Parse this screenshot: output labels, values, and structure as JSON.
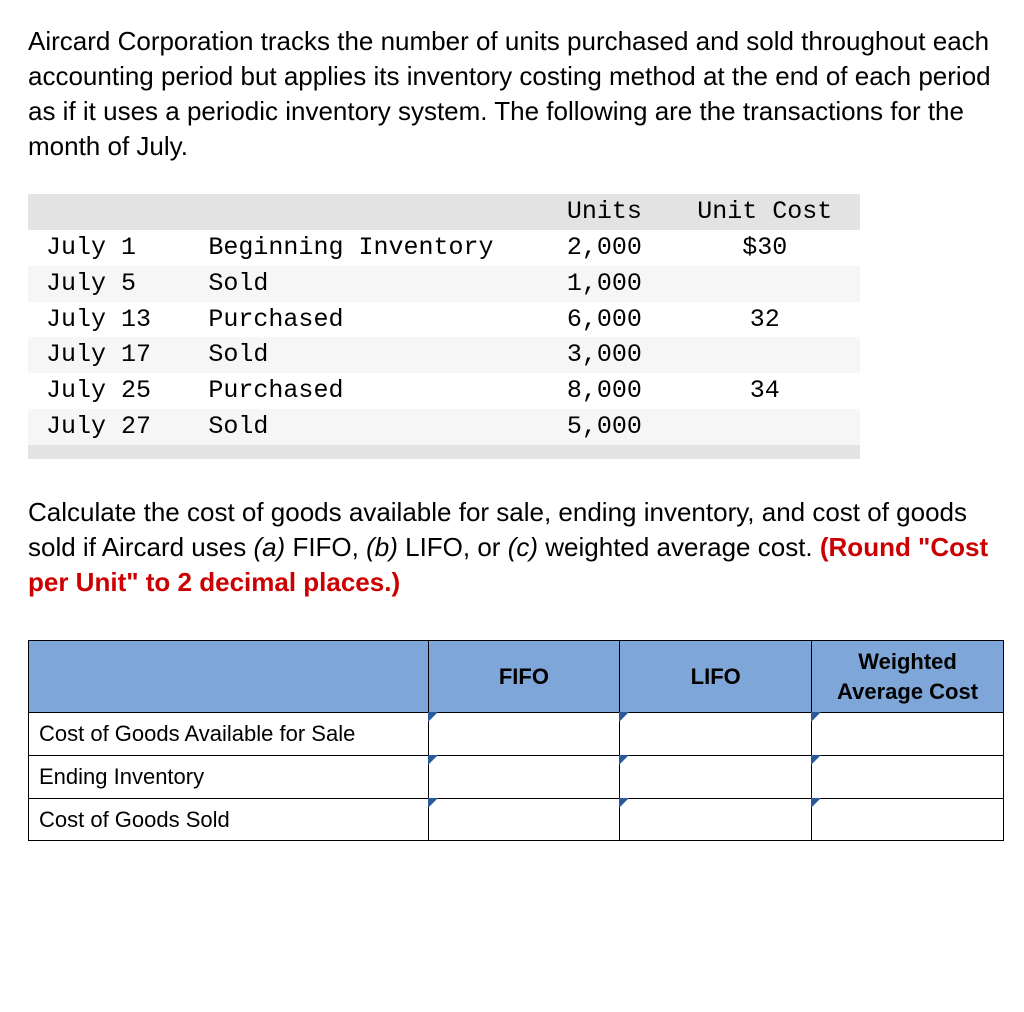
{
  "intro": "Aircard Corporation tracks the number of units purchased and sold throughout each accounting period but applies its inventory costing method at the end of each period as if it uses a periodic inventory system. The following are the transactions for the month of July.",
  "transactions": {
    "headers": {
      "units": "Units",
      "unit_cost": "Unit Cost"
    },
    "rows": [
      {
        "date": "July 1",
        "desc": "Beginning Inventory",
        "units": "2,000",
        "unit_cost": "$30"
      },
      {
        "date": "July 5",
        "desc": "Sold",
        "units": "1,000",
        "unit_cost": ""
      },
      {
        "date": "July 13",
        "desc": "Purchased",
        "units": "6,000",
        "unit_cost": "32"
      },
      {
        "date": "July 17",
        "desc": "Sold",
        "units": "3,000",
        "unit_cost": ""
      },
      {
        "date": "July 25",
        "desc": "Purchased",
        "units": "8,000",
        "unit_cost": "34"
      },
      {
        "date": "July 27",
        "desc": "Sold",
        "units": "5,000",
        "unit_cost": ""
      }
    ],
    "header_bg": "#e3e3e3",
    "stripe_bg": "#f6f6f6",
    "font_family": "Courier New"
  },
  "question": {
    "pre": "Calculate the cost of goods available for sale, ending inventory, and cost of goods sold if Aircard uses ",
    "a": "(a)",
    "a_text": " FIFO, ",
    "b": "(b)",
    "b_text": " LIFO, or ",
    "c": "(c)",
    "c_text": " weighted average cost. ",
    "note": "(Round \"Cost per Unit\" to 2 decimal places.)"
  },
  "answer_table": {
    "headers": {
      "fifo": "FIFO",
      "lifo": "LIFO",
      "wac": "Weighted Average Cost"
    },
    "row_labels": {
      "cogafs": "Cost of Goods Available for Sale",
      "ei": "Ending Inventory",
      "cogs": "Cost of Goods Sold"
    },
    "header_bg": "#7ea6d9",
    "border_color": "#000000",
    "corner_marker_color": "#2a5a9a"
  },
  "colors": {
    "text": "#000000",
    "red": "#cc0000",
    "background": "#ffffff"
  }
}
